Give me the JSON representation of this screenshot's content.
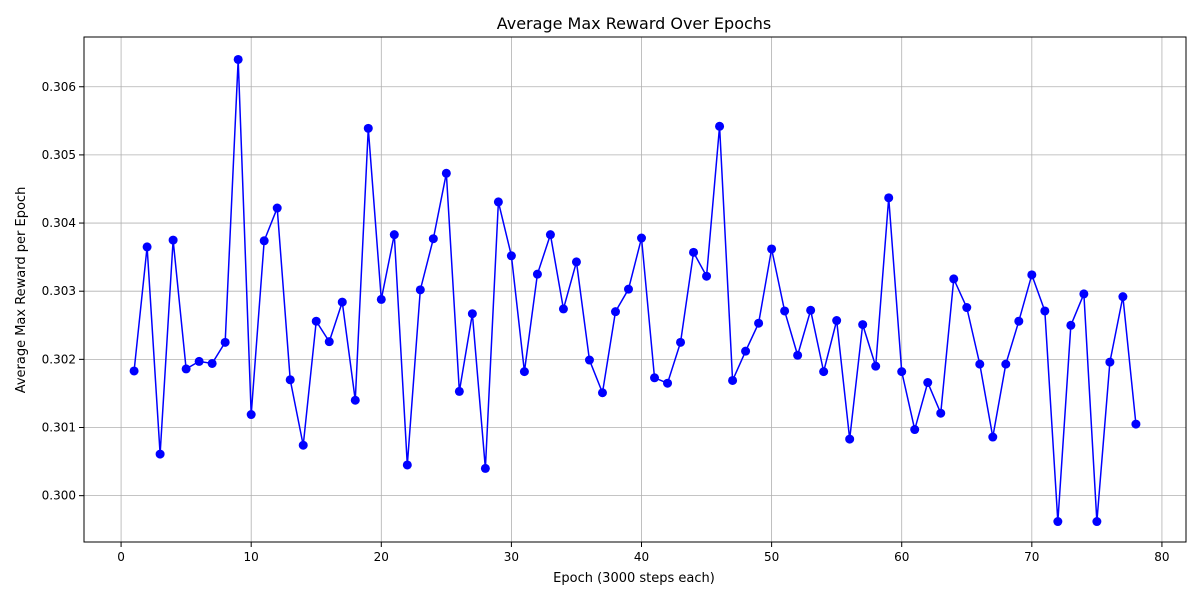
{
  "chart_data": {
    "type": "line",
    "title": "Average Max Reward Over Epochs",
    "xlabel": "Epoch (3000 steps each)",
    "ylabel": "Average Max Reward per Epoch",
    "xlim": [
      -2.85,
      81.85
    ],
    "ylim": [
      0.29932,
      0.30673
    ],
    "x_ticks": [
      0,
      10,
      20,
      30,
      40,
      50,
      60,
      70,
      80
    ],
    "y_ticks": [
      0.3,
      0.301,
      0.302,
      0.303,
      0.304,
      0.305,
      0.306
    ],
    "y_tick_labels": [
      "0.300",
      "0.301",
      "0.302",
      "0.303",
      "0.304",
      "0.305",
      "0.306"
    ],
    "grid": true,
    "line_color": "#0000ff",
    "marker": "circle",
    "x": [
      1,
      2,
      3,
      4,
      5,
      6,
      7,
      8,
      9,
      10,
      11,
      12,
      13,
      14,
      15,
      16,
      17,
      18,
      19,
      20,
      21,
      22,
      23,
      24,
      25,
      26,
      27,
      28,
      29,
      30,
      31,
      32,
      33,
      34,
      35,
      36,
      37,
      38,
      39,
      40,
      41,
      42,
      43,
      44,
      45,
      46,
      47,
      48,
      49,
      50,
      51,
      52,
      53,
      54,
      55,
      56,
      57,
      58,
      59,
      60,
      61,
      62,
      63,
      64,
      65,
      66,
      67,
      68,
      69,
      70,
      71,
      72,
      73,
      74,
      75,
      76,
      77,
      78
    ],
    "y": [
      0.30183,
      0.30365,
      0.30061,
      0.30375,
      0.30186,
      0.30197,
      0.30194,
      0.30225,
      0.3064,
      0.30119,
      0.30374,
      0.30422,
      0.3017,
      0.30074,
      0.30256,
      0.30226,
      0.30284,
      0.3014,
      0.30539,
      0.30288,
      0.30383,
      0.30045,
      0.30302,
      0.30377,
      0.30473,
      0.30153,
      0.30267,
      0.3004,
      0.30431,
      0.30352,
      0.30182,
      0.30325,
      0.30383,
      0.30274,
      0.30343,
      0.30199,
      0.30151,
      0.3027,
      0.30303,
      0.30378,
      0.30173,
      0.30165,
      0.30225,
      0.30357,
      0.30322,
      0.30542,
      0.30169,
      0.30212,
      0.30253,
      0.30362,
      0.30271,
      0.30206,
      0.30272,
      0.30182,
      0.30257,
      0.30083,
      0.30251,
      0.3019,
      0.30437,
      0.30182,
      0.30097,
      0.30166,
      0.30121,
      0.30318,
      0.30276,
      0.30193,
      0.30086,
      0.30193,
      0.30256,
      0.30324,
      0.30271,
      0.29962,
      0.3025,
      0.30296,
      0.29962,
      0.30196,
      0.30292,
      0.30105
    ]
  }
}
